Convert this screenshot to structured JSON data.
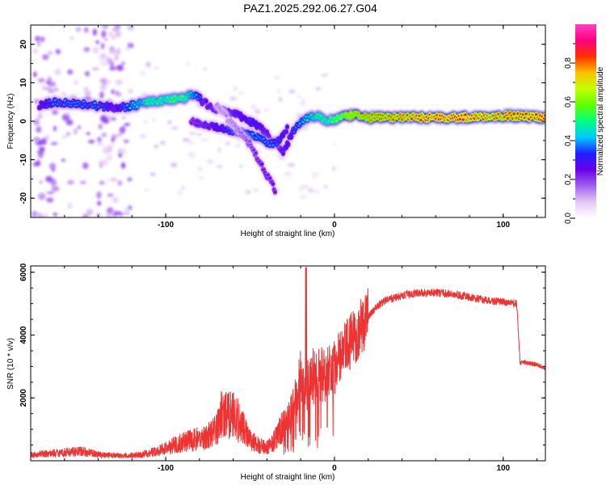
{
  "title": "PAZ1.2025.292.06.27.G04",
  "chart_data": [
    {
      "type": "heatmap",
      "name": "spectrogram",
      "xlabel": "Height of straight line (km)",
      "ylabel": "Frequency (Hz)",
      "xlim": [
        -180,
        125
      ],
      "ylim": [
        -25,
        25
      ],
      "xticks": [
        -100,
        0,
        100
      ],
      "yticks": [
        -20,
        -10,
        0,
        10,
        20
      ],
      "colorbar": {
        "label": "Normalized spectral amplitude",
        "ticks": [
          0.0,
          0.2,
          0.4,
          0.6,
          0.8
        ],
        "range": [
          0,
          1
        ],
        "colormap": [
          "#ffffff",
          "#e6c8f7",
          "#a060f0",
          "#6a00e8",
          "#1f1fff",
          "#00c8ff",
          "#00ff80",
          "#60ff00",
          "#c0ff00",
          "#ffc000",
          "#ff3000",
          "#ff0080",
          "#ff40c0"
        ]
      },
      "ridges": [
        {
          "name": "main-trace",
          "x": [
            -175,
            -165,
            -150,
            -140,
            -130,
            -120,
            -110,
            -100,
            -90,
            -82,
            -78,
            -70,
            -60,
            -50,
            -40,
            -35,
            -30,
            -25,
            -20,
            -15,
            -10,
            -5,
            0,
            5,
            10,
            20,
            40,
            60,
            80,
            100,
            125
          ],
          "y": [
            4,
            5,
            4.5,
            4,
            3.5,
            4,
            5,
            5.5,
            6,
            7,
            5,
            3,
            2,
            0,
            -3,
            -6,
            -8,
            -3,
            0,
            1,
            1.5,
            0,
            0.5,
            1,
            1.5,
            1,
            1,
            1,
            1,
            1.5,
            1
          ],
          "amp": [
            0.3,
            0.4,
            0.4,
            0.4,
            0.3,
            0.45,
            0.55,
            0.55,
            0.6,
            0.45,
            0.3,
            0.3,
            0.3,
            0.35,
            0.3,
            0.3,
            0.3,
            0.35,
            0.45,
            0.5,
            0.55,
            0.55,
            0.6,
            0.7,
            0.75,
            0.8,
            0.85,
            0.9,
            0.9,
            0.85,
            0.9
          ]
        },
        {
          "name": "lower-trace",
          "x": [
            -85,
            -75,
            -65,
            -55,
            -45,
            -38,
            -32,
            -28
          ],
          "y": [
            0,
            -1,
            -2,
            -3,
            -4,
            -6,
            -5,
            -2
          ],
          "amp": [
            0.25,
            0.3,
            0.35,
            0.4,
            0.45,
            0.4,
            0.35,
            0.3
          ]
        },
        {
          "name": "spur-trace",
          "x": [
            -70,
            -60,
            -50,
            -45,
            -40,
            -35
          ],
          "y": [
            4,
            -1,
            -6,
            -10,
            -14,
            -18
          ],
          "amp": [
            0.15,
            0.15,
            0.2,
            0.25,
            0.25,
            0.25
          ]
        }
      ]
    },
    {
      "type": "line",
      "name": "snr",
      "xlabel": "Height of straight line (km)",
      "ylabel": "SNR (10 * v/v)",
      "xlim": [
        -180,
        125
      ],
      "ylim": [
        0,
        6200
      ],
      "xticks": [
        -100,
        0,
        100
      ],
      "yticks": [
        2000,
        4000,
        6000
      ],
      "color": "#ee3333",
      "x": [
        -180,
        -165,
        -150,
        -140,
        -125,
        -115,
        -105,
        -100,
        -90,
        -80,
        -75,
        -70,
        -67,
        -60,
        -55,
        -50,
        -45,
        -40,
        -35,
        -30,
        -25,
        -22,
        -20,
        -18,
        -15,
        -10,
        -5,
        0,
        5,
        10,
        15,
        20,
        25,
        30,
        40,
        50,
        60,
        70,
        80,
        90,
        100,
        108,
        110,
        112,
        120,
        125
      ],
      "y": [
        180,
        250,
        300,
        200,
        150,
        200,
        300,
        400,
        600,
        700,
        800,
        1000,
        1500,
        1500,
        1100,
        700,
        500,
        400,
        700,
        1100,
        1600,
        2000,
        2600,
        2500,
        2600,
        2700,
        2800,
        3000,
        3400,
        3800,
        4200,
        4600,
        4900,
        5100,
        5250,
        5350,
        5350,
        5300,
        5200,
        5100,
        5050,
        5000,
        3100,
        3150,
        3050,
        2950
      ]
    }
  ]
}
